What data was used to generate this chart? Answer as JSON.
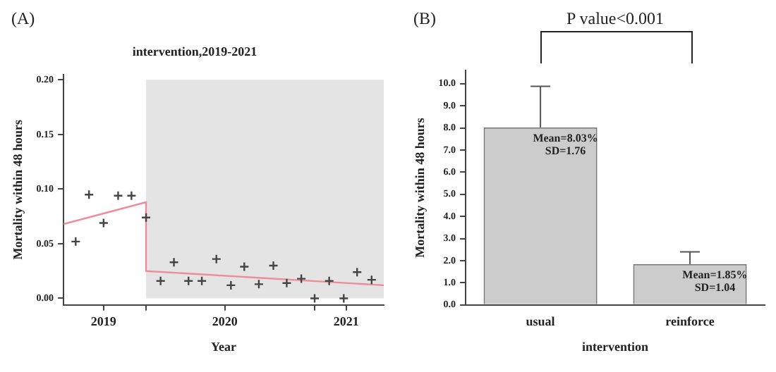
{
  "chart_data": [
    {
      "type": "scatter",
      "title": "intervention,2019-2021",
      "xlabel": "Year",
      "ylabel": "Mortality within 48 hours",
      "annotations": [
        "(A)"
      ],
      "xlim": [
        2018.67,
        2021.31
      ],
      "xticks": [
        2019,
        {
          "value": 2019.35,
          "label": null
        },
        2020,
        {
          "value": 2020.74,
          "label": null
        },
        2021
      ],
      "ylim": [
        -0.006,
        0.205
      ],
      "yticks": [
        {
          "value": 0,
          "label": "0.00"
        },
        {
          "value": 0.05,
          "label": "0.05"
        },
        {
          "value": 0.1,
          "label": "0.10"
        },
        {
          "value": 0.15,
          "label": "0.15"
        },
        {
          "value": 0.2,
          "label": "0.20"
        }
      ],
      "bands": [
        {
          "axis": "x",
          "from": 2019.35,
          "to": 2021.31,
          "color": "#e4e4e4"
        }
      ],
      "grid": false,
      "legend": false,
      "series": [
        {
          "type": "scatter",
          "color": "#444444",
          "marker": "cross",
          "x": [
            2018.77,
            2018.88,
            2019.0,
            2019.12,
            2019.23,
            2019.35,
            2019.47,
            2019.58,
            2019.7,
            2019.81,
            2019.93,
            2020.05,
            2020.16,
            2020.28,
            2020.4,
            2020.51,
            2020.63,
            2020.74,
            2020.86,
            2020.98,
            2021.09,
            2021.21
          ],
          "values": [
            0.052,
            0.095,
            0.069,
            0.094,
            0.094,
            0.074,
            0.016,
            0.033,
            0.016,
            0.016,
            0.036,
            0.012,
            0.029,
            0.013,
            0.03,
            0.014,
            0.018,
            0.0,
            0.016,
            0.0,
            0.024,
            0.017
          ]
        },
        {
          "type": "line",
          "color": "#ee8c9a",
          "x": [
            2018.67,
            2019.35,
            2019.35,
            2021.31
          ],
          "values": [
            0.068,
            0.088,
            0.025,
            0.012
          ]
        }
      ]
    },
    {
      "type": "bar",
      "xlabel": "intervention",
      "ylabel": "Mortality within 48 hours",
      "annotations": [
        "(B)",
        "P value<0.001"
      ],
      "categories": [
        "usual",
        "reinforce"
      ],
      "values": [
        8.03,
        1.85
      ],
      "color": "#cccccc",
      "errors": [
        [
          8.03,
          9.88
        ],
        [
          1.85,
          2.4
        ]
      ],
      "value_labels": [
        "Mean=8.03%\nSD=1.76",
        "Mean=1.85%\nSD=1.04"
      ],
      "ylim": [
        0,
        10.6
      ],
      "yticks": [
        {
          "value": 0,
          "label": "0.0"
        },
        {
          "value": 1,
          "label": "1.0"
        },
        {
          "value": 2,
          "label": "2.0"
        },
        {
          "value": 3,
          "label": "3.0"
        },
        {
          "value": 4,
          "label": "4.0"
        },
        {
          "value": 5,
          "label": "5.0"
        },
        {
          "value": 6,
          "label": "6.0"
        },
        {
          "value": 7,
          "label": "7.0"
        },
        {
          "value": 8,
          "label": "8.0"
        },
        {
          "value": 9,
          "label": "9.0"
        },
        {
          "value": 10,
          "label": "10.0"
        }
      ],
      "grid": false,
      "legend": false
    }
  ]
}
